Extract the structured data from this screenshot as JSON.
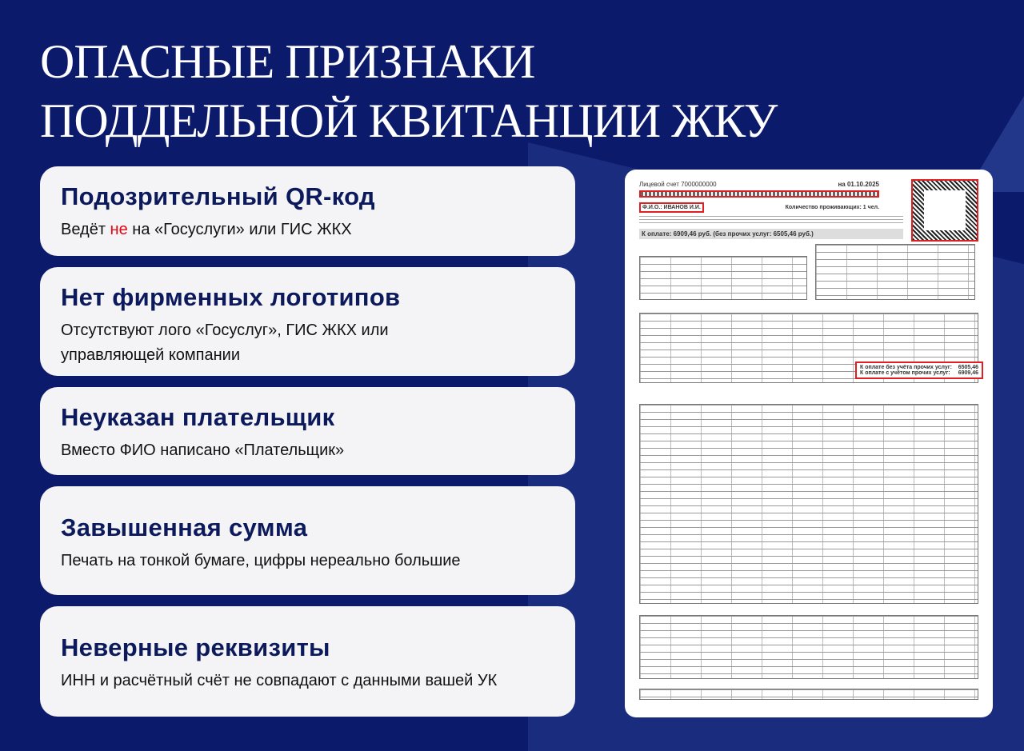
{
  "title": {
    "line1": "ОПАСНЫЕ ПРИЗНАКИ",
    "line2": "ПОДДЕЛЬНОЙ КВИТАНЦИИ ЖКУ"
  },
  "cards": [
    {
      "heading": "Подозрительный QR-код",
      "text_before": "Ведёт ",
      "text_red": "не",
      "text_after": " на «Госуслуги» или ГИС ЖКХ"
    },
    {
      "heading": "Нет фирменных логотипов",
      "text": "Отсутствуют лого «Госуслуг», ГИС ЖКХ или управляющей компании"
    },
    {
      "heading": "Неуказан плательщик",
      "text": "Вместо ФИО написано «Плательщик»"
    },
    {
      "heading": "Завышенная сумма",
      "text": "Печать на тонкой бумаге, цифры нереально большие"
    },
    {
      "heading": "Неверные реквизиты",
      "text": "ИНН и расчётный счёт не совпадают с данными вашей УК"
    }
  ],
  "receipt": {
    "account": "Лицевой счет 7000000000",
    "date": "на 01.10.2025",
    "fio": "Ф.И.О.: ИВАНОВ И.И.",
    "residents": "Количество проживающих: 1 чел.",
    "to_pay": "К оплате: 6909,46 руб. (без прочих услуг: 6505,46 руб.)",
    "total_without_label": "К оплате без учёта прочих услуг:",
    "total_without": "6505,46",
    "total_with_label": "К оплате с учётом прочих услуг:",
    "total_with": "6909,46"
  },
  "colors": {
    "background": "#0c1a6c",
    "accent_red": "#e30613",
    "card": "#f4f4f6"
  }
}
